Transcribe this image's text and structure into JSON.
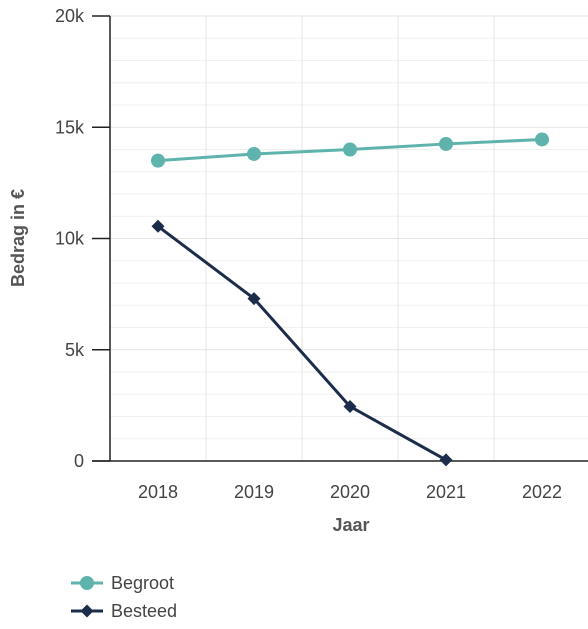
{
  "chart_data": {
    "type": "line",
    "xlabel": "Jaar",
    "ylabel": "Bedrag in €",
    "categories": [
      "2018",
      "2019",
      "2020",
      "2021",
      "2022"
    ],
    "ylim": [
      0,
      20000
    ],
    "yticks": [
      0,
      5000,
      10000,
      15000,
      20000
    ],
    "ytick_labels": [
      "0",
      "5k",
      "10k",
      "15k",
      "20k"
    ],
    "grid": true,
    "legend_position": "bottom-left",
    "series": [
      {
        "name": "Begroot",
        "color": "#5fb3ad",
        "marker": "circle",
        "values": [
          13500,
          13800,
          14000,
          14250,
          14450
        ]
      },
      {
        "name": "Besteed",
        "color": "#1b2d4a",
        "marker": "diamond",
        "values": [
          10550,
          7300,
          2450,
          50,
          null
        ]
      }
    ]
  }
}
